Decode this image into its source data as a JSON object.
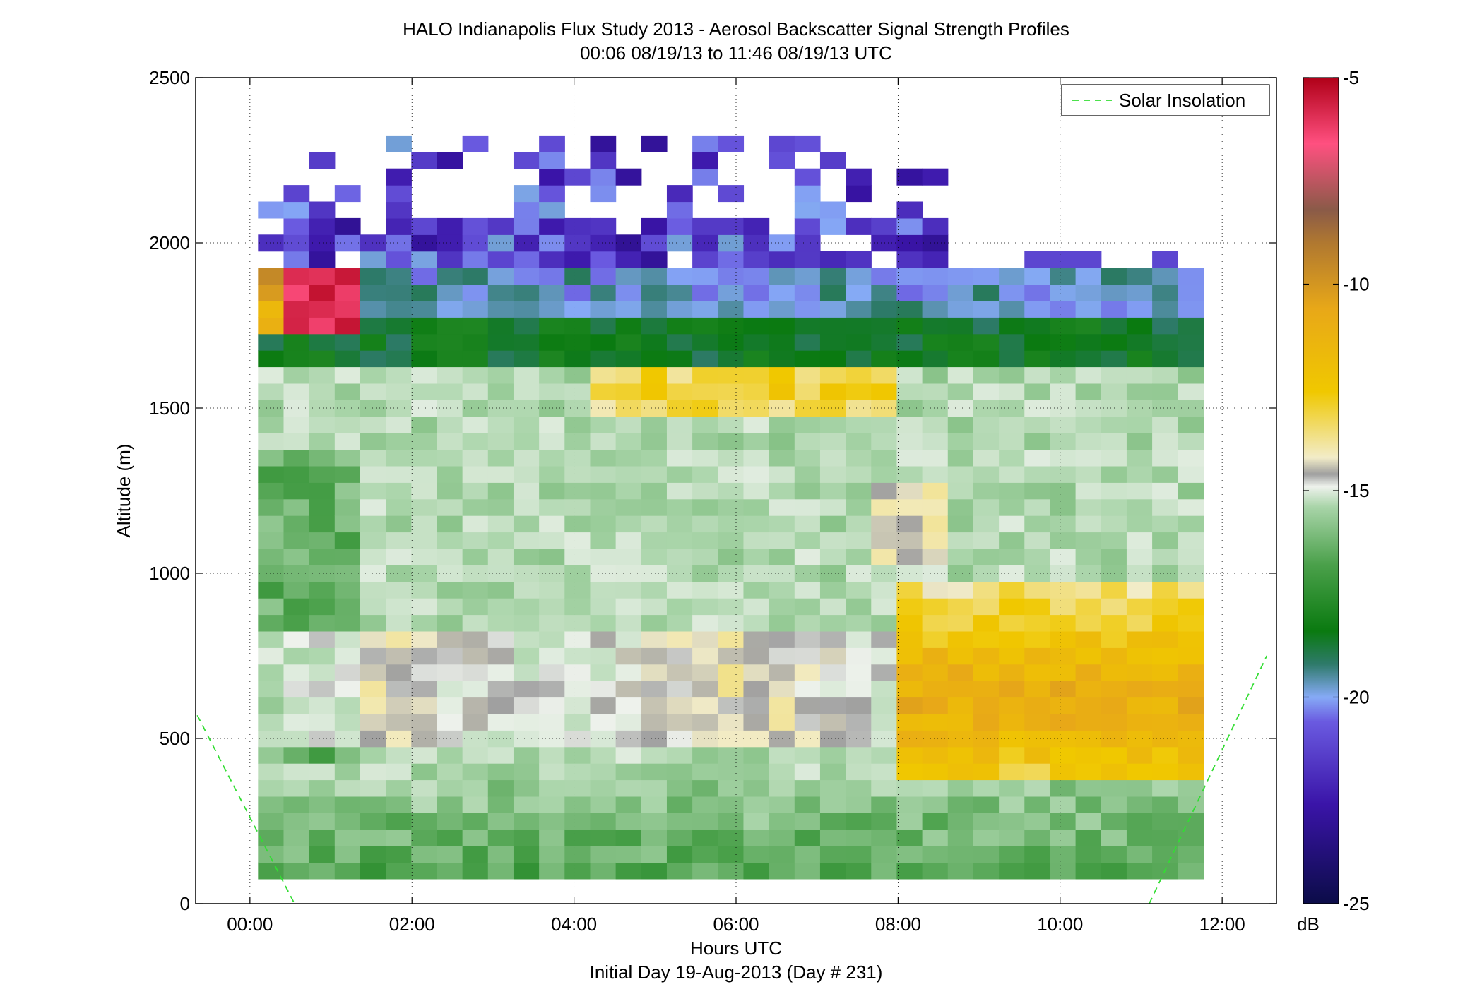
{
  "chart_data": {
    "type": "heatmap",
    "title": "HALO Indianapolis Flux Study 2013 - Aerosol Backscatter Signal Strength Profiles",
    "subtitle": "00:06 08/19/13 to 11:46 08/19/13  UTC",
    "xlabel": "Hours UTC",
    "xlabel2": "Initial Day 19-Aug-2013 (Day # 231)",
    "ylabel": "Altitude (m)",
    "x_range_hours": [
      -0.67,
      12.67
    ],
    "ylim": [
      0,
      2500
    ],
    "x_tick_hours": [
      0,
      2,
      4,
      6,
      8,
      10,
      12
    ],
    "x_tick_labels": [
      "00:00",
      "02:00",
      "04:00",
      "06:00",
      "08:00",
      "10:00",
      "12:00"
    ],
    "y_ticks": [
      0,
      500,
      1000,
      1500,
      2000,
      2500
    ],
    "y_tick_labels": [
      "0",
      "500",
      "1000",
      "1500",
      "2000",
      "2500"
    ],
    "grid": true,
    "legend_position": "top-right",
    "legend": [
      {
        "label": "Solar Insolation",
        "style": "dashed",
        "color": "#33dd33"
      }
    ],
    "colorbar": {
      "unit": "dB",
      "range": [
        -25,
        -5
      ],
      "ticks": [
        -5,
        -10,
        -15,
        -20,
        -25
      ],
      "tick_labels": [
        "-5",
        "-10",
        "-15",
        "-20",
        "-25"
      ]
    },
    "grid_cells": {
      "time_start_hours": 0.1,
      "time_end_hours": 11.767,
      "altitude_start_m": 75,
      "altitude_end_m": 1925,
      "notes_regions_db": [
        {
          "time": [
            0.1,
            11.77
          ],
          "alt": [
            75,
            400
          ],
          "db": -17.5
        },
        {
          "time": [
            0.1,
            11.77
          ],
          "alt": [
            400,
            1800
          ],
          "db": -16
        },
        {
          "time": [
            0.4,
            1.45
          ],
          "alt": [
            1750,
            2000
          ],
          "db": -5.5
        },
        {
          "time": [
            8.0,
            11.77
          ],
          "alt": [
            350,
            1000
          ],
          "db": -13
        },
        {
          "time": [
            4.1,
            8.0
          ],
          "alt": [
            1450,
            1650
          ],
          "db": -13
        },
        {
          "time": [
            0.1,
            11.77
          ],
          "alt": [
            1650,
            1800
          ],
          "db": -19.5
        },
        {
          "time": [
            0.1,
            11.77
          ],
          "alt": [
            1800,
            1925
          ],
          "db": -21.5
        },
        {
          "time": [
            0.1,
            8.5
          ],
          "alt": [
            1925,
            2400
          ],
          "db": -23
        }
      ]
    },
    "solar_insolation_curve": {
      "x_hours": [
        -0.65,
        0.55,
        11.1,
        12.55
      ],
      "y_m": [
        570,
        0,
        0,
        750
      ]
    }
  }
}
